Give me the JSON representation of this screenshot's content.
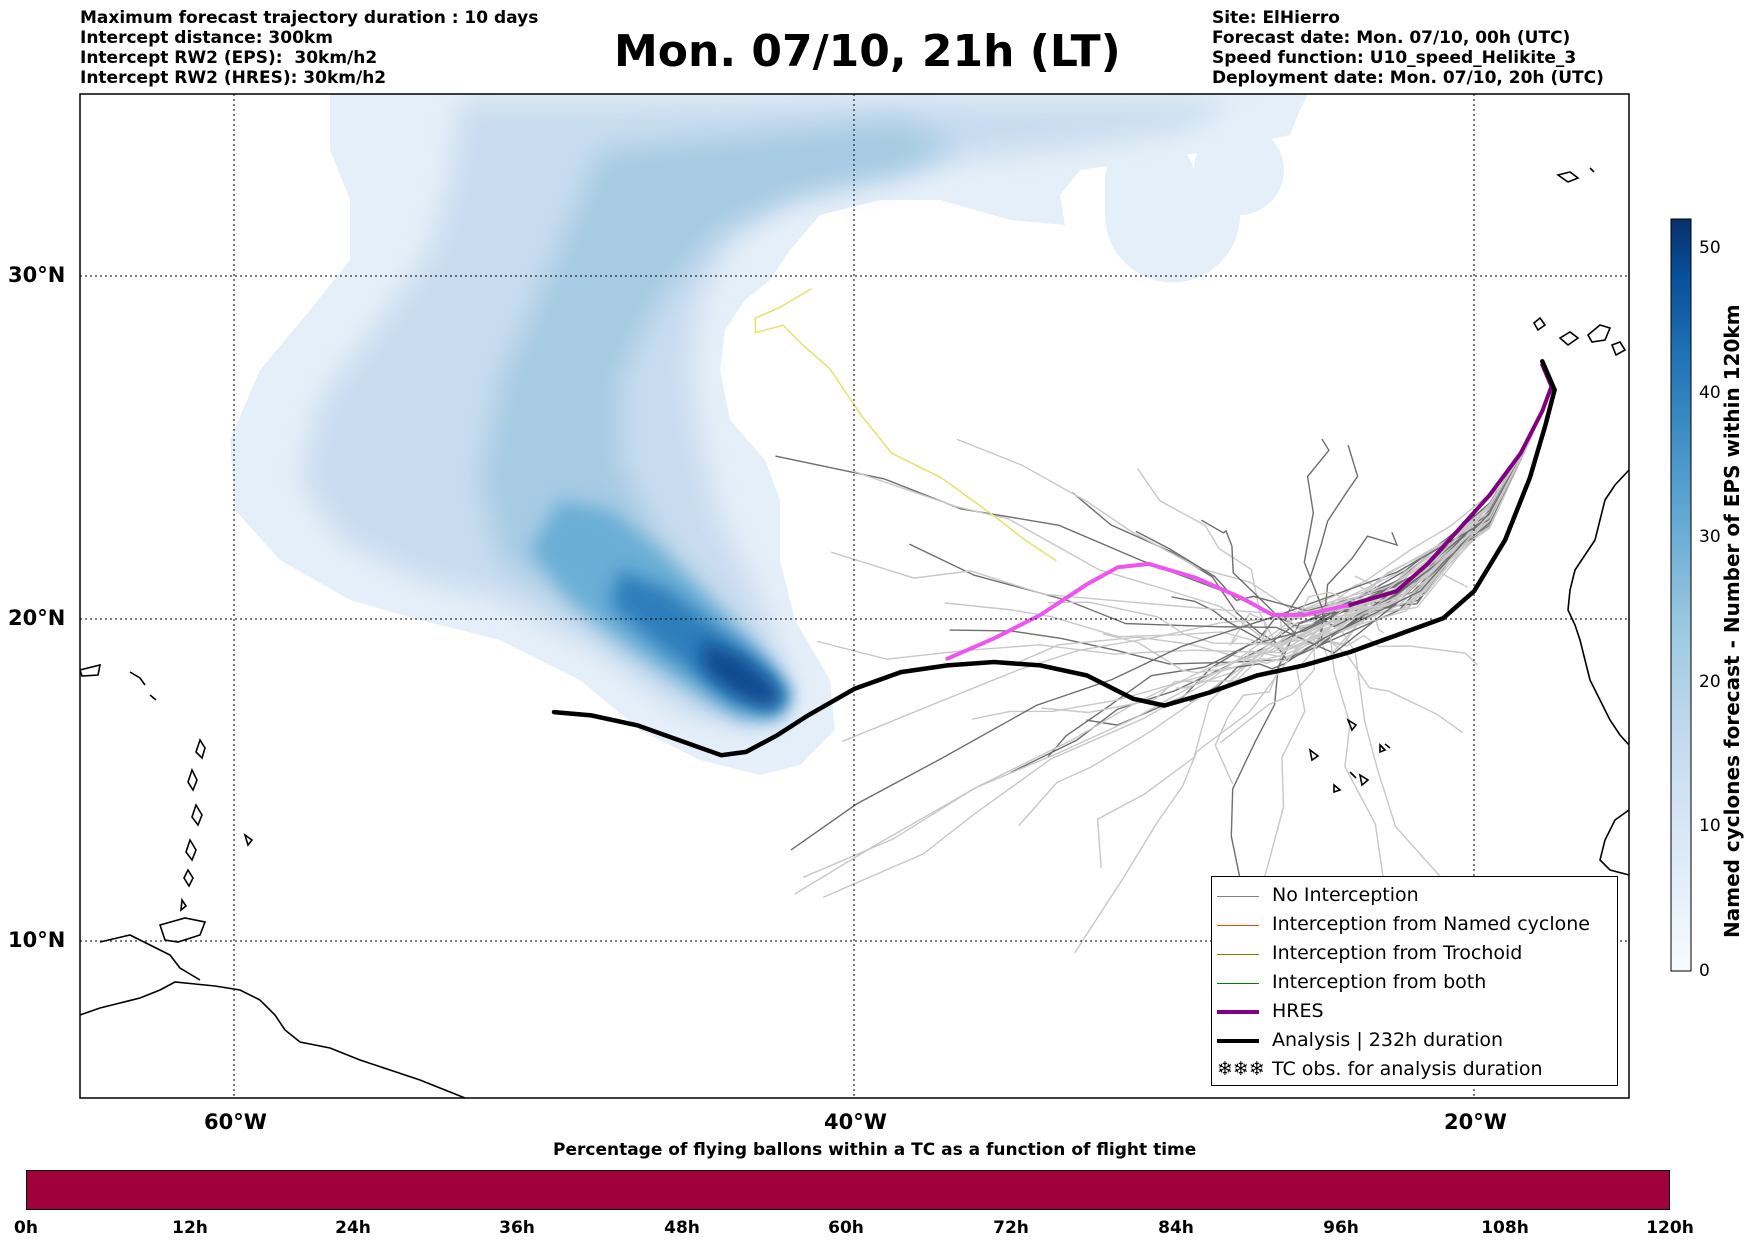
{
  "header_left": [
    "Maximum forecast trajectory duration : 10 days",
    "Intercept distance: 300km",
    "Intercept RW2 (EPS):  30km/h2",
    "Intercept RW2 (HRES): 30km/h2"
  ],
  "title": "Mon. 07/10, 21h (LT)",
  "header_right": [
    "Site: ElHierro",
    "Forecast date: Mon. 07/10, 00h (UTC)",
    "Speed function: U10_speed_Helikite_3",
    "Deployment date: Mon. 07/10, 20h (UTC)"
  ],
  "map": {
    "lat_labels": [
      "30°N",
      "20°N",
      "10°N"
    ],
    "lon_labels": [
      "60°W",
      "40°W",
      "20°W"
    ],
    "lat_range": [
      5.5,
      34.8
    ],
    "lon_range": [
      -65,
      -15
    ],
    "grid": true
  },
  "colorbar": {
    "title": "Named cyclones forecast - Number of EPS within 120km",
    "ticks": [
      "0",
      "10",
      "20",
      "30",
      "40",
      "50"
    ],
    "range": [
      0,
      52
    ],
    "colors": [
      "#f7fbff",
      "#deebf7",
      "#c6dbef",
      "#9ecae1",
      "#6baed6",
      "#4292c6",
      "#2171b5",
      "#08519c",
      "#08306b"
    ]
  },
  "legend": {
    "items": [
      {
        "label": "No Interception",
        "color": "#808080",
        "style": "thin"
      },
      {
        "label": "Interception from Named cyclone",
        "color": "#ff4500",
        "style": "thin"
      },
      {
        "label": "Interception from Trochoid",
        "color": "#808000",
        "style": "thin"
      },
      {
        "label": "Interception from both",
        "color": "#008000",
        "style": "thin"
      },
      {
        "label": "HRES",
        "color": "#800080",
        "style": "thick"
      },
      {
        "label": "Analysis | 232h duration",
        "color": "#000000",
        "style": "thick"
      },
      {
        "label": "TC obs. for analysis duration",
        "color": "#000000",
        "style": "symbol"
      }
    ]
  },
  "analysis_track": {
    "color": "#000000",
    "points": [
      [
        -49.7,
        17.4
      ],
      [
        -48.5,
        17.3
      ],
      [
        -47,
        17.0
      ],
      [
        -45.5,
        16.5
      ],
      [
        -44.3,
        16.1
      ],
      [
        -43.5,
        16.2
      ],
      [
        -42.5,
        16.7
      ],
      [
        -41.5,
        17.3
      ],
      [
        -40,
        18.1
      ],
      [
        -38.5,
        18.6
      ],
      [
        -37,
        18.8
      ],
      [
        -35.5,
        18.9
      ],
      [
        -34,
        18.8
      ],
      [
        -32.5,
        18.5
      ],
      [
        -31,
        17.8
      ],
      [
        -30,
        17.6
      ],
      [
        -28.5,
        18.0
      ],
      [
        -27,
        18.5
      ],
      [
        -25.5,
        18.8
      ],
      [
        -24,
        19.2
      ],
      [
        -22.5,
        19.7
      ],
      [
        -21,
        20.2
      ],
      [
        -20,
        21.0
      ],
      [
        -19,
        22.5
      ],
      [
        -18.2,
        24.3
      ],
      [
        -17.7,
        25.8
      ],
      [
        -17.4,
        26.8
      ],
      [
        -17.8,
        27.6
      ]
    ]
  },
  "hres_track": {
    "color_start": "#ee55ee",
    "color_end": "#800080",
    "points": [
      [
        -37,
        19.0
      ],
      [
        -35.5,
        19.6
      ],
      [
        -34,
        20.3
      ],
      [
        -32.5,
        21.2
      ],
      [
        -31.5,
        21.7
      ],
      [
        -30.5,
        21.8
      ],
      [
        -29,
        21.4
      ],
      [
        -27.5,
        20.8
      ],
      [
        -26.5,
        20.3
      ],
      [
        -25.5,
        20.3
      ],
      [
        -24,
        20.6
      ],
      [
        -22.5,
        21.0
      ],
      [
        -21.5,
        21.8
      ],
      [
        -20.5,
        22.8
      ],
      [
        -19.5,
        23.8
      ],
      [
        -18.5,
        25.0
      ],
      [
        -17.8,
        26.2
      ],
      [
        -17.5,
        26.9
      ],
      [
        -17.8,
        27.5
      ]
    ]
  },
  "yellow_track": {
    "color": "#e3e36a",
    "points": [
      [
        -33.5,
        21.9
      ],
      [
        -34.5,
        22.5
      ],
      [
        -35.5,
        23.2
      ],
      [
        -37.2,
        24.3
      ],
      [
        -38.8,
        25.0
      ],
      [
        -39.8,
        26.1
      ],
      [
        -40.8,
        27.4
      ],
      [
        -41.6,
        28.0
      ],
      [
        -42.3,
        28.6
      ],
      [
        -43.2,
        28.4
      ],
      [
        -43.2,
        28.8
      ],
      [
        -42.4,
        29.1
      ],
      [
        -41.4,
        29.6
      ]
    ]
  }
}
